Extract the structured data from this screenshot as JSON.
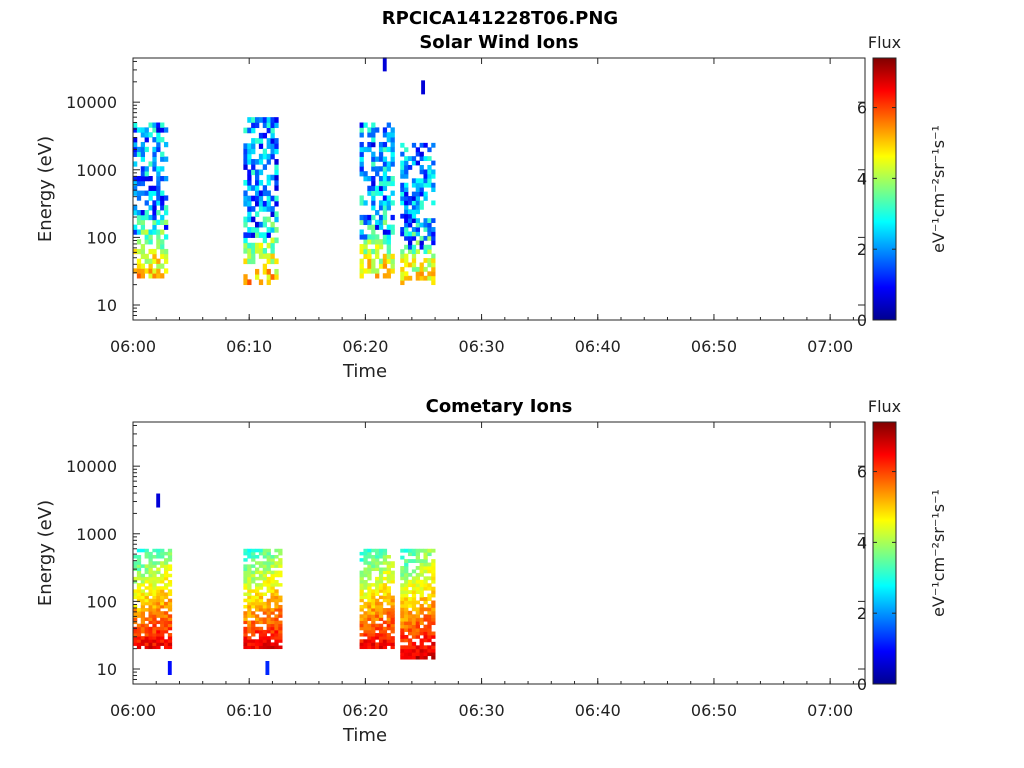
{
  "figure": {
    "title": "RPCICA141228T06.PNG"
  },
  "colors": {
    "axis": "#262626",
    "background": "#ffffff"
  },
  "chart_data": [
    {
      "type": "heatmap",
      "title": "Solar Wind Ions",
      "xlabel": "Time",
      "ylabel": "Energy (eV)",
      "yscale": "log",
      "xlim": [
        "06:00",
        "07:03"
      ],
      "ylim": [
        6,
        45000
      ],
      "x_ticks": [
        "06:00",
        "06:10",
        "06:20",
        "06:30",
        "06:40",
        "06:50",
        "07:00"
      ],
      "y_ticks": [
        "10",
        "100",
        "1000",
        "10000"
      ],
      "colorbar": {
        "title": "Flux",
        "label": "eV⁻¹cm⁻²sr⁻¹s⁻¹",
        "range": [
          0,
          7.4
        ],
        "ticks": [
          "0",
          "2",
          "4",
          "6"
        ],
        "colormap": "jet"
      },
      "bursts": [
        {
          "t_start": "06:00",
          "t_end": "06:03",
          "e_min": 25,
          "e_max": 5000,
          "flux_low_energy": 5.2,
          "flux_high_energy": 2.4
        },
        {
          "t_start": "06:09.5",
          "t_end": "06:12.5",
          "e_min": 20,
          "e_max": 6000,
          "flux_low_energy": 5.2,
          "flux_high_energy": 2.4
        },
        {
          "t_start": "06:19.5",
          "t_end": "06:22.5",
          "e_min": 25,
          "e_max": 5000,
          "flux_low_energy": 5.0,
          "flux_high_energy": 2.4
        },
        {
          "t_start": "06:23",
          "t_end": "06:25.8",
          "e_min": 20,
          "e_max": 2500,
          "flux_low_energy": 5.0,
          "flux_high_energy": 2.3
        }
      ],
      "isolated_points": [
        {
          "t": "06:21.5",
          "e": 35000,
          "flux": 0.6
        },
        {
          "t": "06:24.8",
          "e": 16000,
          "flux": 0.6
        }
      ]
    },
    {
      "type": "heatmap",
      "title": "Cometary Ions",
      "xlabel": "Time",
      "ylabel": "Energy (eV)",
      "yscale": "log",
      "xlim": [
        "06:00",
        "07:03"
      ],
      "ylim": [
        6,
        45000
      ],
      "x_ticks": [
        "06:00",
        "06:10",
        "06:20",
        "06:30",
        "06:40",
        "06:50",
        "07:00"
      ],
      "y_ticks": [
        "10",
        "100",
        "1000",
        "10000"
      ],
      "colorbar": {
        "title": "Flux",
        "label": "eV⁻¹cm⁻²sr⁻¹s⁻¹",
        "range": [
          0,
          7.4
        ],
        "ticks": [
          "0",
          "2",
          "4",
          "6"
        ],
        "colormap": "jet"
      },
      "bursts": [
        {
          "t_start": "06:00",
          "t_end": "06:03.3",
          "e_min": 20,
          "e_max": 600,
          "flux_low_energy": 6.6,
          "flux_high_energy": 3.2
        },
        {
          "t_start": "06:09.5",
          "t_end": "06:12.8",
          "e_min": 20,
          "e_max": 600,
          "flux_low_energy": 6.6,
          "flux_high_energy": 3.2
        },
        {
          "t_start": "06:19.5",
          "t_end": "06:22.5",
          "e_min": 20,
          "e_max": 600,
          "flux_low_energy": 6.6,
          "flux_high_energy": 3.2
        },
        {
          "t_start": "06:23",
          "t_end": "06:25.8",
          "e_min": 14,
          "e_max": 600,
          "flux_low_energy": 6.8,
          "flux_high_energy": 3.3
        }
      ],
      "isolated_points": [
        {
          "t": "06:02",
          "e": 3000,
          "flux": 0.6
        },
        {
          "t": "06:03",
          "e": 10,
          "flux": 1.0
        },
        {
          "t": "06:11.4",
          "e": 10,
          "flux": 1.2
        }
      ]
    }
  ]
}
